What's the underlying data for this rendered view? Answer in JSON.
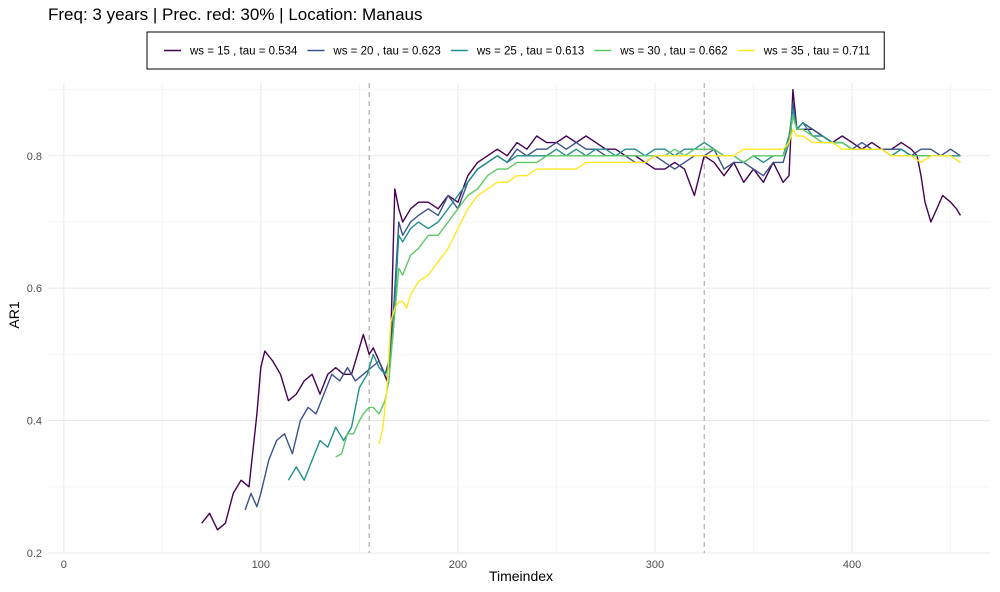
{
  "chart_data": {
    "type": "line",
    "title": "Freq: 3 years | Prec. red: 30% | Location: Manaus",
    "xlabel": "Timeindex",
    "ylabel": "AR1",
    "xlim": [
      -8,
      470
    ],
    "ylim": [
      0.2,
      0.91
    ],
    "x_ticks": [
      0,
      100,
      200,
      300,
      400
    ],
    "x_tick_labels": [
      "0",
      "100",
      "200",
      "300",
      "400"
    ],
    "y_ticks": [
      0.2,
      0.4,
      0.6,
      0.8
    ],
    "y_tick_labels": [
      "0.2",
      "0.4",
      "0.6",
      "0.8"
    ],
    "grid": true,
    "legend_position": "top",
    "vlines": [
      155,
      325
    ],
    "series": [
      {
        "name": "ws = 15 , tau = 0.534",
        "color": "#440154",
        "x": [
          70,
          74,
          78,
          82,
          86,
          90,
          94,
          98,
          100,
          102,
          106,
          110,
          114,
          118,
          122,
          126,
          130,
          134,
          138,
          142,
          146,
          150,
          152,
          155,
          157,
          160,
          162,
          164,
          166,
          168,
          170,
          172,
          176,
          180,
          185,
          190,
          195,
          200,
          205,
          210,
          215,
          220,
          225,
          230,
          235,
          240,
          245,
          250,
          255,
          260,
          265,
          270,
          275,
          280,
          285,
          290,
          295,
          300,
          305,
          310,
          315,
          320,
          325,
          330,
          335,
          340,
          345,
          350,
          355,
          360,
          365,
          368,
          370,
          372,
          375,
          380,
          385,
          390,
          395,
          400,
          405,
          410,
          415,
          420,
          425,
          430,
          433,
          435,
          437,
          440,
          443,
          446,
          450,
          453,
          455
        ],
        "y": [
          0.245,
          0.26,
          0.235,
          0.245,
          0.29,
          0.31,
          0.3,
          0.41,
          0.48,
          0.505,
          0.49,
          0.47,
          0.43,
          0.44,
          0.46,
          0.47,
          0.44,
          0.47,
          0.48,
          0.47,
          0.47,
          0.51,
          0.53,
          0.5,
          0.51,
          0.49,
          0.475,
          0.46,
          0.53,
          0.75,
          0.72,
          0.7,
          0.72,
          0.73,
          0.73,
          0.72,
          0.74,
          0.73,
          0.77,
          0.79,
          0.8,
          0.81,
          0.8,
          0.82,
          0.81,
          0.83,
          0.82,
          0.82,
          0.83,
          0.82,
          0.83,
          0.82,
          0.81,
          0.81,
          0.8,
          0.8,
          0.79,
          0.78,
          0.78,
          0.79,
          0.78,
          0.74,
          0.8,
          0.79,
          0.77,
          0.79,
          0.76,
          0.78,
          0.76,
          0.79,
          0.76,
          0.77,
          0.9,
          0.84,
          0.84,
          0.84,
          0.83,
          0.82,
          0.83,
          0.82,
          0.81,
          0.82,
          0.81,
          0.81,
          0.82,
          0.81,
          0.8,
          0.77,
          0.73,
          0.7,
          0.72,
          0.74,
          0.73,
          0.72,
          0.71
        ]
      },
      {
        "name": "ws = 20 , tau = 0.623",
        "color": "#3b528b",
        "x": [
          92,
          95,
          98,
          100,
          104,
          108,
          112,
          116,
          120,
          124,
          128,
          132,
          136,
          140,
          144,
          148,
          152,
          156,
          160,
          163,
          165,
          167,
          170,
          172,
          176,
          180,
          185,
          190,
          195,
          200,
          205,
          210,
          215,
          220,
          225,
          230,
          235,
          240,
          245,
          250,
          255,
          260,
          265,
          270,
          275,
          280,
          285,
          290,
          295,
          300,
          305,
          310,
          315,
          320,
          325,
          330,
          335,
          340,
          345,
          350,
          355,
          360,
          365,
          368,
          370,
          372,
          375,
          380,
          385,
          390,
          395,
          400,
          405,
          410,
          415,
          420,
          425,
          430,
          435,
          440,
          445,
          450,
          455
        ],
        "y": [
          0.265,
          0.29,
          0.27,
          0.29,
          0.34,
          0.37,
          0.38,
          0.35,
          0.4,
          0.42,
          0.41,
          0.44,
          0.47,
          0.46,
          0.48,
          0.46,
          0.47,
          0.48,
          0.49,
          0.47,
          0.49,
          0.55,
          0.7,
          0.68,
          0.7,
          0.71,
          0.72,
          0.71,
          0.74,
          0.72,
          0.76,
          0.78,
          0.79,
          0.8,
          0.79,
          0.81,
          0.8,
          0.81,
          0.81,
          0.82,
          0.81,
          0.82,
          0.81,
          0.81,
          0.8,
          0.8,
          0.8,
          0.79,
          0.79,
          0.8,
          0.79,
          0.78,
          0.79,
          0.8,
          0.8,
          0.81,
          0.78,
          0.79,
          0.79,
          0.78,
          0.77,
          0.79,
          0.79,
          0.82,
          0.88,
          0.84,
          0.85,
          0.84,
          0.83,
          0.82,
          0.82,
          0.81,
          0.82,
          0.81,
          0.81,
          0.81,
          0.81,
          0.8,
          0.81,
          0.81,
          0.8,
          0.81,
          0.8
        ]
      },
      {
        "name": "ws = 25 , tau = 0.613",
        "color": "#21908c",
        "x": [
          114,
          118,
          122,
          126,
          130,
          134,
          138,
          142,
          146,
          150,
          154,
          157,
          160,
          163,
          165,
          167,
          170,
          172,
          176,
          180,
          185,
          190,
          195,
          200,
          205,
          210,
          215,
          220,
          225,
          230,
          235,
          240,
          245,
          250,
          255,
          260,
          265,
          270,
          275,
          280,
          285,
          290,
          295,
          300,
          305,
          310,
          315,
          320,
          325,
          330,
          335,
          340,
          345,
          350,
          355,
          360,
          365,
          368,
          370,
          372,
          375,
          380,
          385,
          390,
          395,
          400,
          405,
          410,
          415,
          420,
          425,
          430,
          435,
          440,
          445,
          450,
          455
        ],
        "y": [
          0.31,
          0.33,
          0.31,
          0.34,
          0.37,
          0.36,
          0.39,
          0.37,
          0.39,
          0.45,
          0.47,
          0.5,
          0.48,
          0.47,
          0.48,
          0.53,
          0.68,
          0.67,
          0.69,
          0.7,
          0.69,
          0.7,
          0.72,
          0.74,
          0.76,
          0.78,
          0.79,
          0.8,
          0.79,
          0.8,
          0.8,
          0.8,
          0.8,
          0.81,
          0.8,
          0.81,
          0.8,
          0.81,
          0.81,
          0.8,
          0.81,
          0.81,
          0.8,
          0.81,
          0.81,
          0.8,
          0.81,
          0.81,
          0.82,
          0.81,
          0.8,
          0.8,
          0.79,
          0.8,
          0.79,
          0.8,
          0.8,
          0.83,
          0.87,
          0.84,
          0.85,
          0.83,
          0.83,
          0.82,
          0.82,
          0.81,
          0.81,
          0.81,
          0.81,
          0.8,
          0.81,
          0.8,
          0.8,
          0.8,
          0.8,
          0.8,
          0.8
        ]
      },
      {
        "name": "ws = 30 , tau = 0.662",
        "color": "#5dc963",
        "x": [
          138,
          141,
          144,
          147,
          150,
          152,
          155,
          157,
          160,
          163,
          165,
          167,
          170,
          172,
          176,
          180,
          185,
          190,
          195,
          200,
          205,
          210,
          215,
          220,
          225,
          230,
          235,
          240,
          245,
          250,
          255,
          260,
          265,
          270,
          275,
          280,
          285,
          290,
          295,
          300,
          305,
          310,
          315,
          320,
          325,
          330,
          335,
          340,
          345,
          350,
          355,
          360,
          365,
          368,
          370,
          372,
          375,
          380,
          385,
          390,
          395,
          400,
          405,
          410,
          415,
          420,
          425,
          430,
          435,
          440,
          445,
          450,
          455
        ],
        "y": [
          0.345,
          0.35,
          0.38,
          0.38,
          0.4,
          0.41,
          0.42,
          0.42,
          0.41,
          0.43,
          0.46,
          0.53,
          0.63,
          0.62,
          0.65,
          0.66,
          0.68,
          0.68,
          0.7,
          0.72,
          0.74,
          0.75,
          0.77,
          0.78,
          0.78,
          0.79,
          0.79,
          0.79,
          0.8,
          0.8,
          0.8,
          0.8,
          0.8,
          0.8,
          0.8,
          0.8,
          0.8,
          0.8,
          0.8,
          0.8,
          0.8,
          0.81,
          0.8,
          0.81,
          0.81,
          0.81,
          0.8,
          0.8,
          0.79,
          0.8,
          0.8,
          0.8,
          0.8,
          0.82,
          0.86,
          0.84,
          0.84,
          0.83,
          0.82,
          0.82,
          0.82,
          0.81,
          0.81,
          0.81,
          0.81,
          0.8,
          0.8,
          0.8,
          0.8,
          0.8,
          0.8,
          0.8,
          0.79
        ]
      },
      {
        "name": "ws = 35 , tau = 0.711",
        "color": "#fde725",
        "x": [
          160,
          162,
          164,
          166,
          168,
          170,
          172,
          174,
          176,
          180,
          185,
          190,
          195,
          200,
          205,
          210,
          215,
          220,
          225,
          230,
          235,
          240,
          245,
          250,
          255,
          260,
          265,
          270,
          275,
          280,
          285,
          290,
          295,
          300,
          305,
          310,
          315,
          320,
          325,
          330,
          335,
          340,
          345,
          350,
          355,
          360,
          365,
          368,
          370,
          372,
          375,
          380,
          385,
          390,
          395,
          400,
          405,
          410,
          415,
          420,
          425,
          430,
          435,
          440,
          445,
          450,
          455
        ],
        "y": [
          0.365,
          0.39,
          0.45,
          0.55,
          0.57,
          0.58,
          0.58,
          0.57,
          0.59,
          0.61,
          0.62,
          0.64,
          0.66,
          0.69,
          0.72,
          0.74,
          0.75,
          0.76,
          0.76,
          0.77,
          0.77,
          0.78,
          0.78,
          0.78,
          0.78,
          0.78,
          0.79,
          0.79,
          0.79,
          0.79,
          0.79,
          0.79,
          0.79,
          0.8,
          0.8,
          0.8,
          0.8,
          0.8,
          0.8,
          0.8,
          0.8,
          0.8,
          0.81,
          0.81,
          0.81,
          0.81,
          0.81,
          0.82,
          0.84,
          0.83,
          0.83,
          0.82,
          0.82,
          0.82,
          0.81,
          0.81,
          0.81,
          0.81,
          0.81,
          0.8,
          0.8,
          0.8,
          0.79,
          0.8,
          0.8,
          0.8,
          0.79
        ]
      }
    ]
  }
}
